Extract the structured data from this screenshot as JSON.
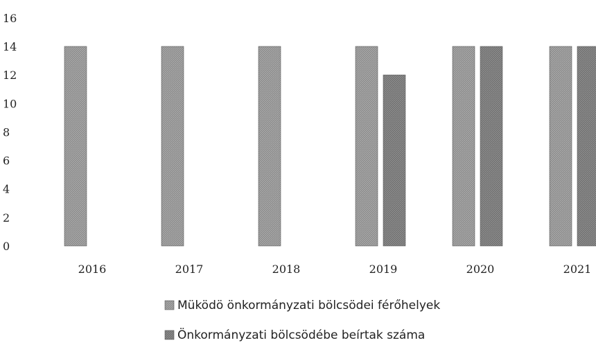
{
  "chart_data": {
    "type": "bar",
    "categories": [
      "2016",
      "2017",
      "2018",
      "2019",
      "2020",
      "2021"
    ],
    "series": [
      {
        "name": "Müködö önkormányzati bölcsödei férőhelyek",
        "values": [
          14,
          14,
          14,
          14,
          14,
          14
        ],
        "color": "#8a8a8a"
      },
      {
        "name": "Önkormányzati bölcsödébe beírtak száma",
        "values": [
          null,
          null,
          null,
          12,
          14,
          14
        ],
        "color": "#6f6f6f"
      }
    ],
    "y_ticks": [
      "0",
      "2",
      "4",
      "6",
      "8",
      "10",
      "12",
      "14",
      "16"
    ],
    "ylim": [
      0,
      16
    ],
    "grid": false,
    "legend_position": "bottom"
  }
}
